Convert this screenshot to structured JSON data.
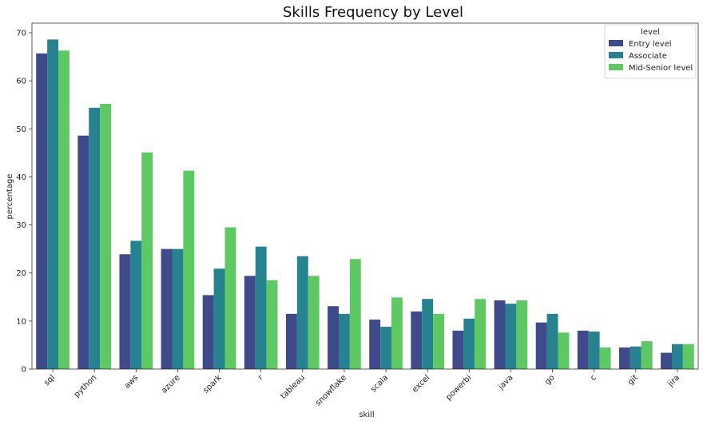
{
  "chart_data": {
    "type": "bar",
    "title": "Skills Frequency by Level",
    "xlabel": "skill",
    "ylabel": "percentage",
    "ylim": [
      0,
      72
    ],
    "yticks": [
      0,
      10,
      20,
      30,
      40,
      50,
      60,
      70
    ],
    "grid": false,
    "legend": {
      "title": "level",
      "placement": "top-right"
    },
    "categories": [
      "sql",
      "python",
      "aws",
      "azure",
      "spark",
      "r",
      "tableau",
      "snowflake",
      "scala",
      "excel",
      "powerbi",
      "java",
      "go",
      "c",
      "git",
      "jira"
    ],
    "series": [
      {
        "name": "Entry level",
        "color": "#3e4a89",
        "values": [
          65.7,
          48.6,
          23.9,
          25.0,
          15.4,
          19.4,
          11.5,
          13.1,
          10.3,
          12.0,
          8.0,
          14.3,
          9.7,
          8.0,
          4.5,
          3.4
        ]
      },
      {
        "name": "Associate",
        "color": "#26828e",
        "values": [
          68.6,
          54.4,
          26.7,
          25.0,
          20.9,
          25.5,
          23.5,
          11.5,
          8.8,
          14.6,
          10.5,
          13.6,
          11.5,
          7.8,
          4.7,
          5.2
        ]
      },
      {
        "name": "Mid-Senior level",
        "color": "#5ec962",
        "values": [
          66.3,
          55.2,
          45.1,
          41.3,
          29.5,
          18.5,
          19.4,
          22.9,
          14.9,
          11.5,
          14.6,
          14.3,
          7.6,
          4.5,
          5.8,
          5.2
        ]
      }
    ]
  }
}
